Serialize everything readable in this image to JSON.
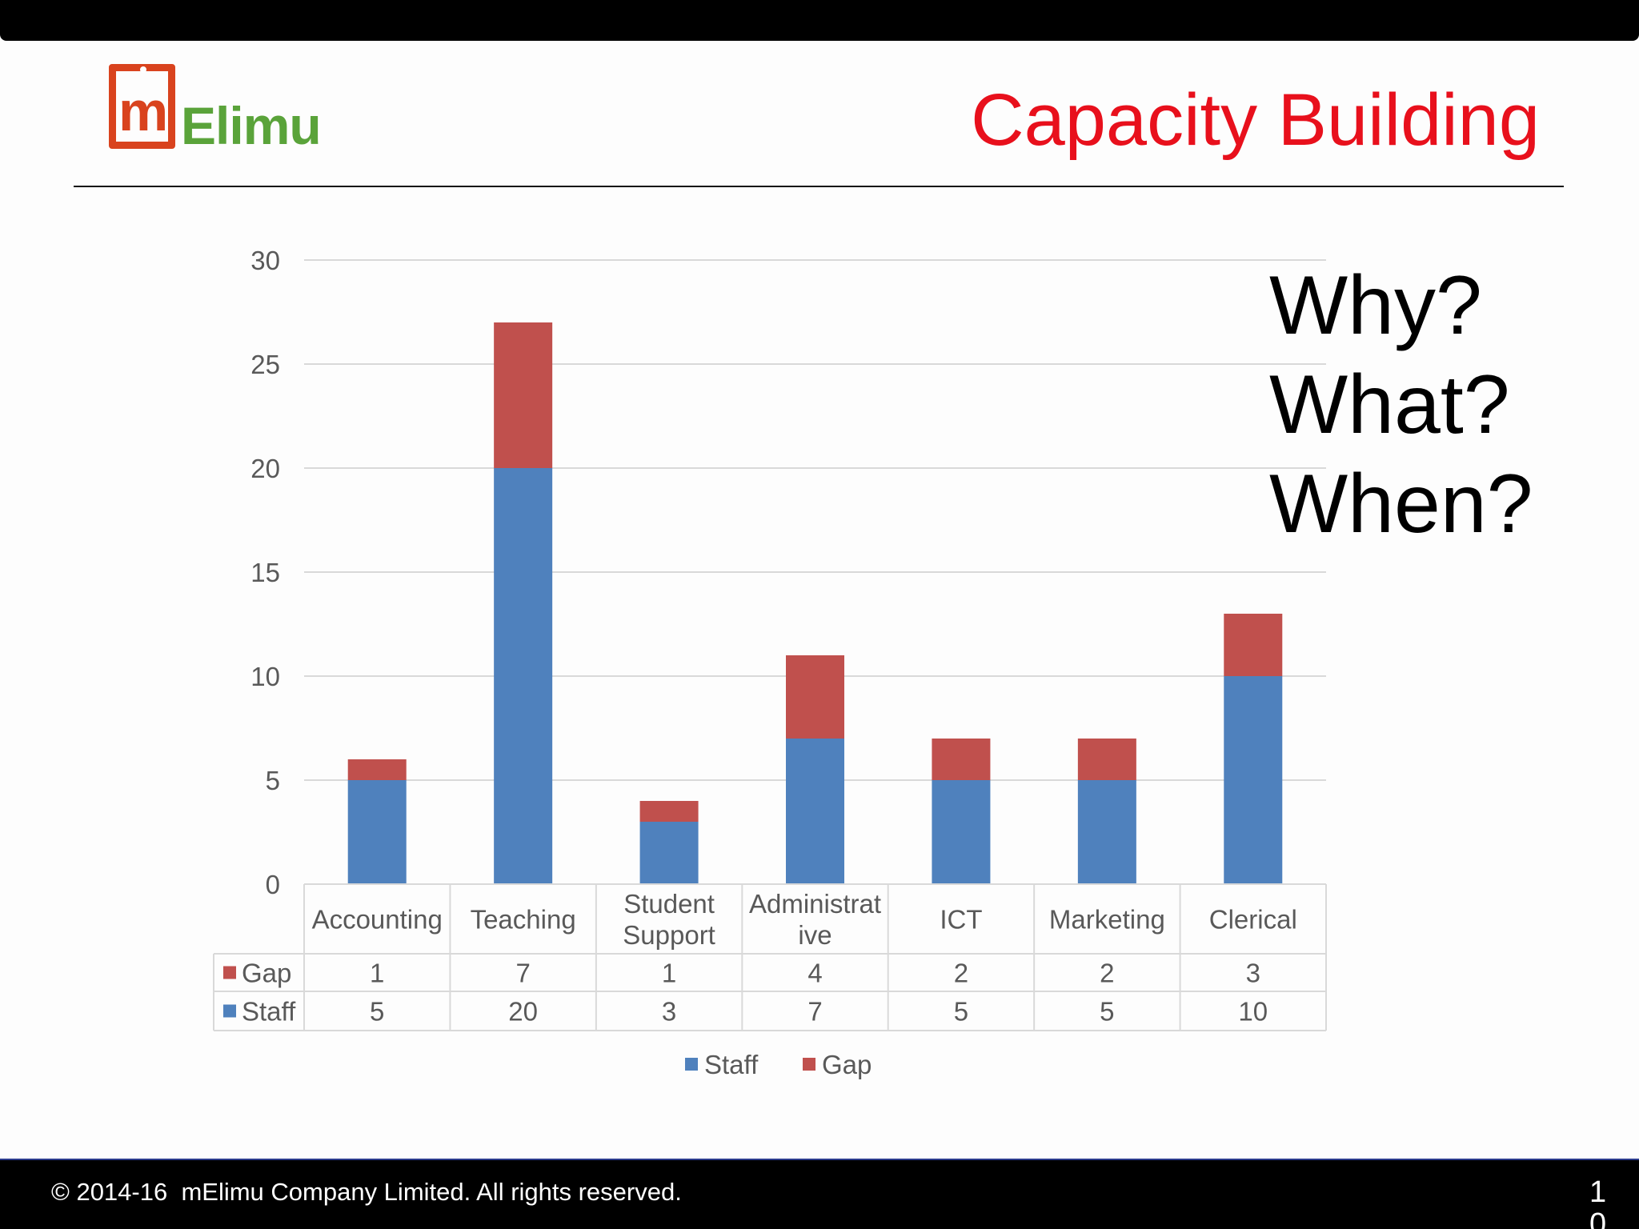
{
  "slide": {
    "title": "Capacity Building",
    "logo_mark_text": "m",
    "logo_text": "Elimu",
    "questions": [
      "Why?",
      "What?",
      "When?"
    ],
    "footer": "© 2014-16  mElimu Company Limited. All rights reserved.",
    "page_number": "10"
  },
  "chart_data": {
    "type": "bar",
    "stacked": true,
    "categories": [
      "Accounting",
      "Teaching",
      "Student Support",
      "Administrative",
      "ICT",
      "Marketing",
      "Clerical"
    ],
    "category_lines": [
      [
        "Accounting"
      ],
      [
        "Teaching"
      ],
      [
        "Student",
        "Support"
      ],
      [
        "Administrat",
        "ive"
      ],
      [
        "ICT"
      ],
      [
        "Marketing"
      ],
      [
        "Clerical"
      ]
    ],
    "series": [
      {
        "name": "Staff",
        "values": [
          5,
          20,
          3,
          7,
          5,
          5,
          10
        ],
        "color": "#4f81bd"
      },
      {
        "name": "Gap",
        "values": [
          1,
          7,
          1,
          4,
          2,
          2,
          3
        ],
        "color": "#c0504d"
      }
    ],
    "ylim": [
      0,
      30
    ],
    "yticks": [
      0,
      5,
      10,
      15,
      20,
      25,
      30
    ],
    "grid": true,
    "data_table": true,
    "legend": "bottom"
  }
}
